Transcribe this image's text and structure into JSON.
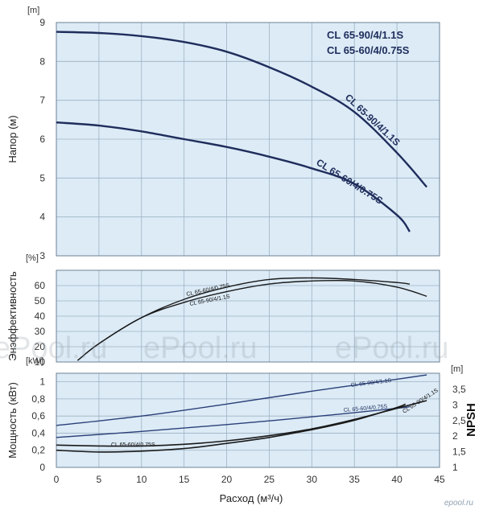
{
  "watermarks": [
    "ePool.ru",
    "ePool.ru",
    "ePool.ru"
  ],
  "logo_text": "epool.ru",
  "x_axis": {
    "label": "Расход (м³/ч)",
    "ticks": [
      "0",
      "5",
      "10",
      "15",
      "20",
      "25",
      "30",
      "35",
      "40",
      "45"
    ]
  },
  "colors": {
    "plot_bg": "#dcebf6",
    "grid": "#9fb2c4",
    "dark_blue": "#1f2d5c",
    "black": "#1a1a1a",
    "text_blue": "#1f2d5c"
  },
  "chart_data": [
    {
      "type": "line",
      "panel": "head",
      "ylabel": "Напор (м)",
      "unit_label": "[m]",
      "xlim": [
        0,
        45
      ],
      "ylim": [
        3,
        9
      ],
      "yticks": [
        "3",
        "4",
        "5",
        "6",
        "7",
        "8",
        "9"
      ],
      "grid": true,
      "legend_text": [
        "CL 65-90/4/1.1S",
        "CL 65-60/4/0.75S"
      ],
      "series": [
        {
          "name": "CL 65-90/4/1.1S",
          "x": [
            0,
            5,
            10,
            15,
            20,
            25,
            30,
            35,
            40,
            43.5
          ],
          "y": [
            8.76,
            8.73,
            8.65,
            8.5,
            8.25,
            7.85,
            7.35,
            6.7,
            5.65,
            4.77
          ]
        },
        {
          "name": "CL 65-60/4/0.75S",
          "x": [
            0,
            5,
            10,
            15,
            20,
            25,
            30,
            35,
            40,
            41.5
          ],
          "y": [
            6.43,
            6.35,
            6.2,
            6.0,
            5.8,
            5.55,
            5.25,
            4.85,
            4.05,
            3.62
          ]
        }
      ]
    },
    {
      "type": "line",
      "panel": "efficiency",
      "ylabel": "Энэффективность",
      "unit_label": "[%]",
      "xlim": [
        0,
        45
      ],
      "ylim": [
        10,
        70
      ],
      "yticks": [
        "10",
        "20",
        "30",
        "40",
        "50",
        "60"
      ],
      "grid": true,
      "series": [
        {
          "name": "CL 65-60/4/0.75S",
          "x": [
            2.5,
            5,
            10,
            15,
            20,
            25,
            30,
            35,
            40,
            41.5
          ],
          "y": [
            11,
            22,
            39,
            51,
            59,
            64,
            65,
            64,
            62,
            61
          ]
        },
        {
          "name": "CL 65-90/4/1.1S",
          "x": [
            2.5,
            5,
            10,
            15,
            20,
            25,
            30,
            35,
            40,
            43.5
          ],
          "y": [
            11,
            22,
            39,
            49,
            56,
            61,
            63,
            63,
            59,
            53
          ]
        }
      ]
    },
    {
      "type": "line",
      "panel": "power_npsh",
      "ylabel": "Мощность (кВт)",
      "unit_label": "[kW]",
      "ylabel_right": "NPSH",
      "unit_label_right": "[m]",
      "xlim": [
        0,
        45
      ],
      "ylim": [
        0,
        1.1
      ],
      "yticks": [
        "0",
        "0,2",
        "0,4",
        "0,6",
        "0,8",
        "1"
      ],
      "yticks_right": [
        "1",
        "1,5",
        "2",
        "2,5",
        "3",
        "3,5"
      ],
      "grid": true,
      "series": [
        {
          "name": "CL 65-90/4/1.1S",
          "x": [
            0,
            10,
            20,
            30,
            40,
            43.5
          ],
          "y": [
            0.49,
            0.6,
            0.74,
            0.89,
            1.03,
            1.08
          ]
        },
        {
          "name": "CL 65-60/4/0.75S",
          "x": [
            0,
            10,
            20,
            30,
            40,
            41.5
          ],
          "y": [
            0.35,
            0.42,
            0.5,
            0.59,
            0.69,
            0.71
          ]
        },
        {
          "name": "CL 65-90/4/1.1S",
          "x": [
            0,
            5,
            10,
            15,
            20,
            25,
            30,
            35,
            40,
            43.5
          ],
          "y": [
            0.26,
            0.25,
            0.25,
            0.27,
            0.31,
            0.37,
            0.45,
            0.56,
            0.69,
            0.78
          ]
        },
        {
          "name": "CL 65-60/4/0.75S",
          "x": [
            0,
            5,
            10,
            15,
            20,
            25,
            30,
            35,
            40,
            41
          ],
          "y": [
            0.2,
            0.18,
            0.19,
            0.22,
            0.28,
            0.35,
            0.44,
            0.55,
            0.7,
            0.74
          ]
        }
      ]
    }
  ]
}
